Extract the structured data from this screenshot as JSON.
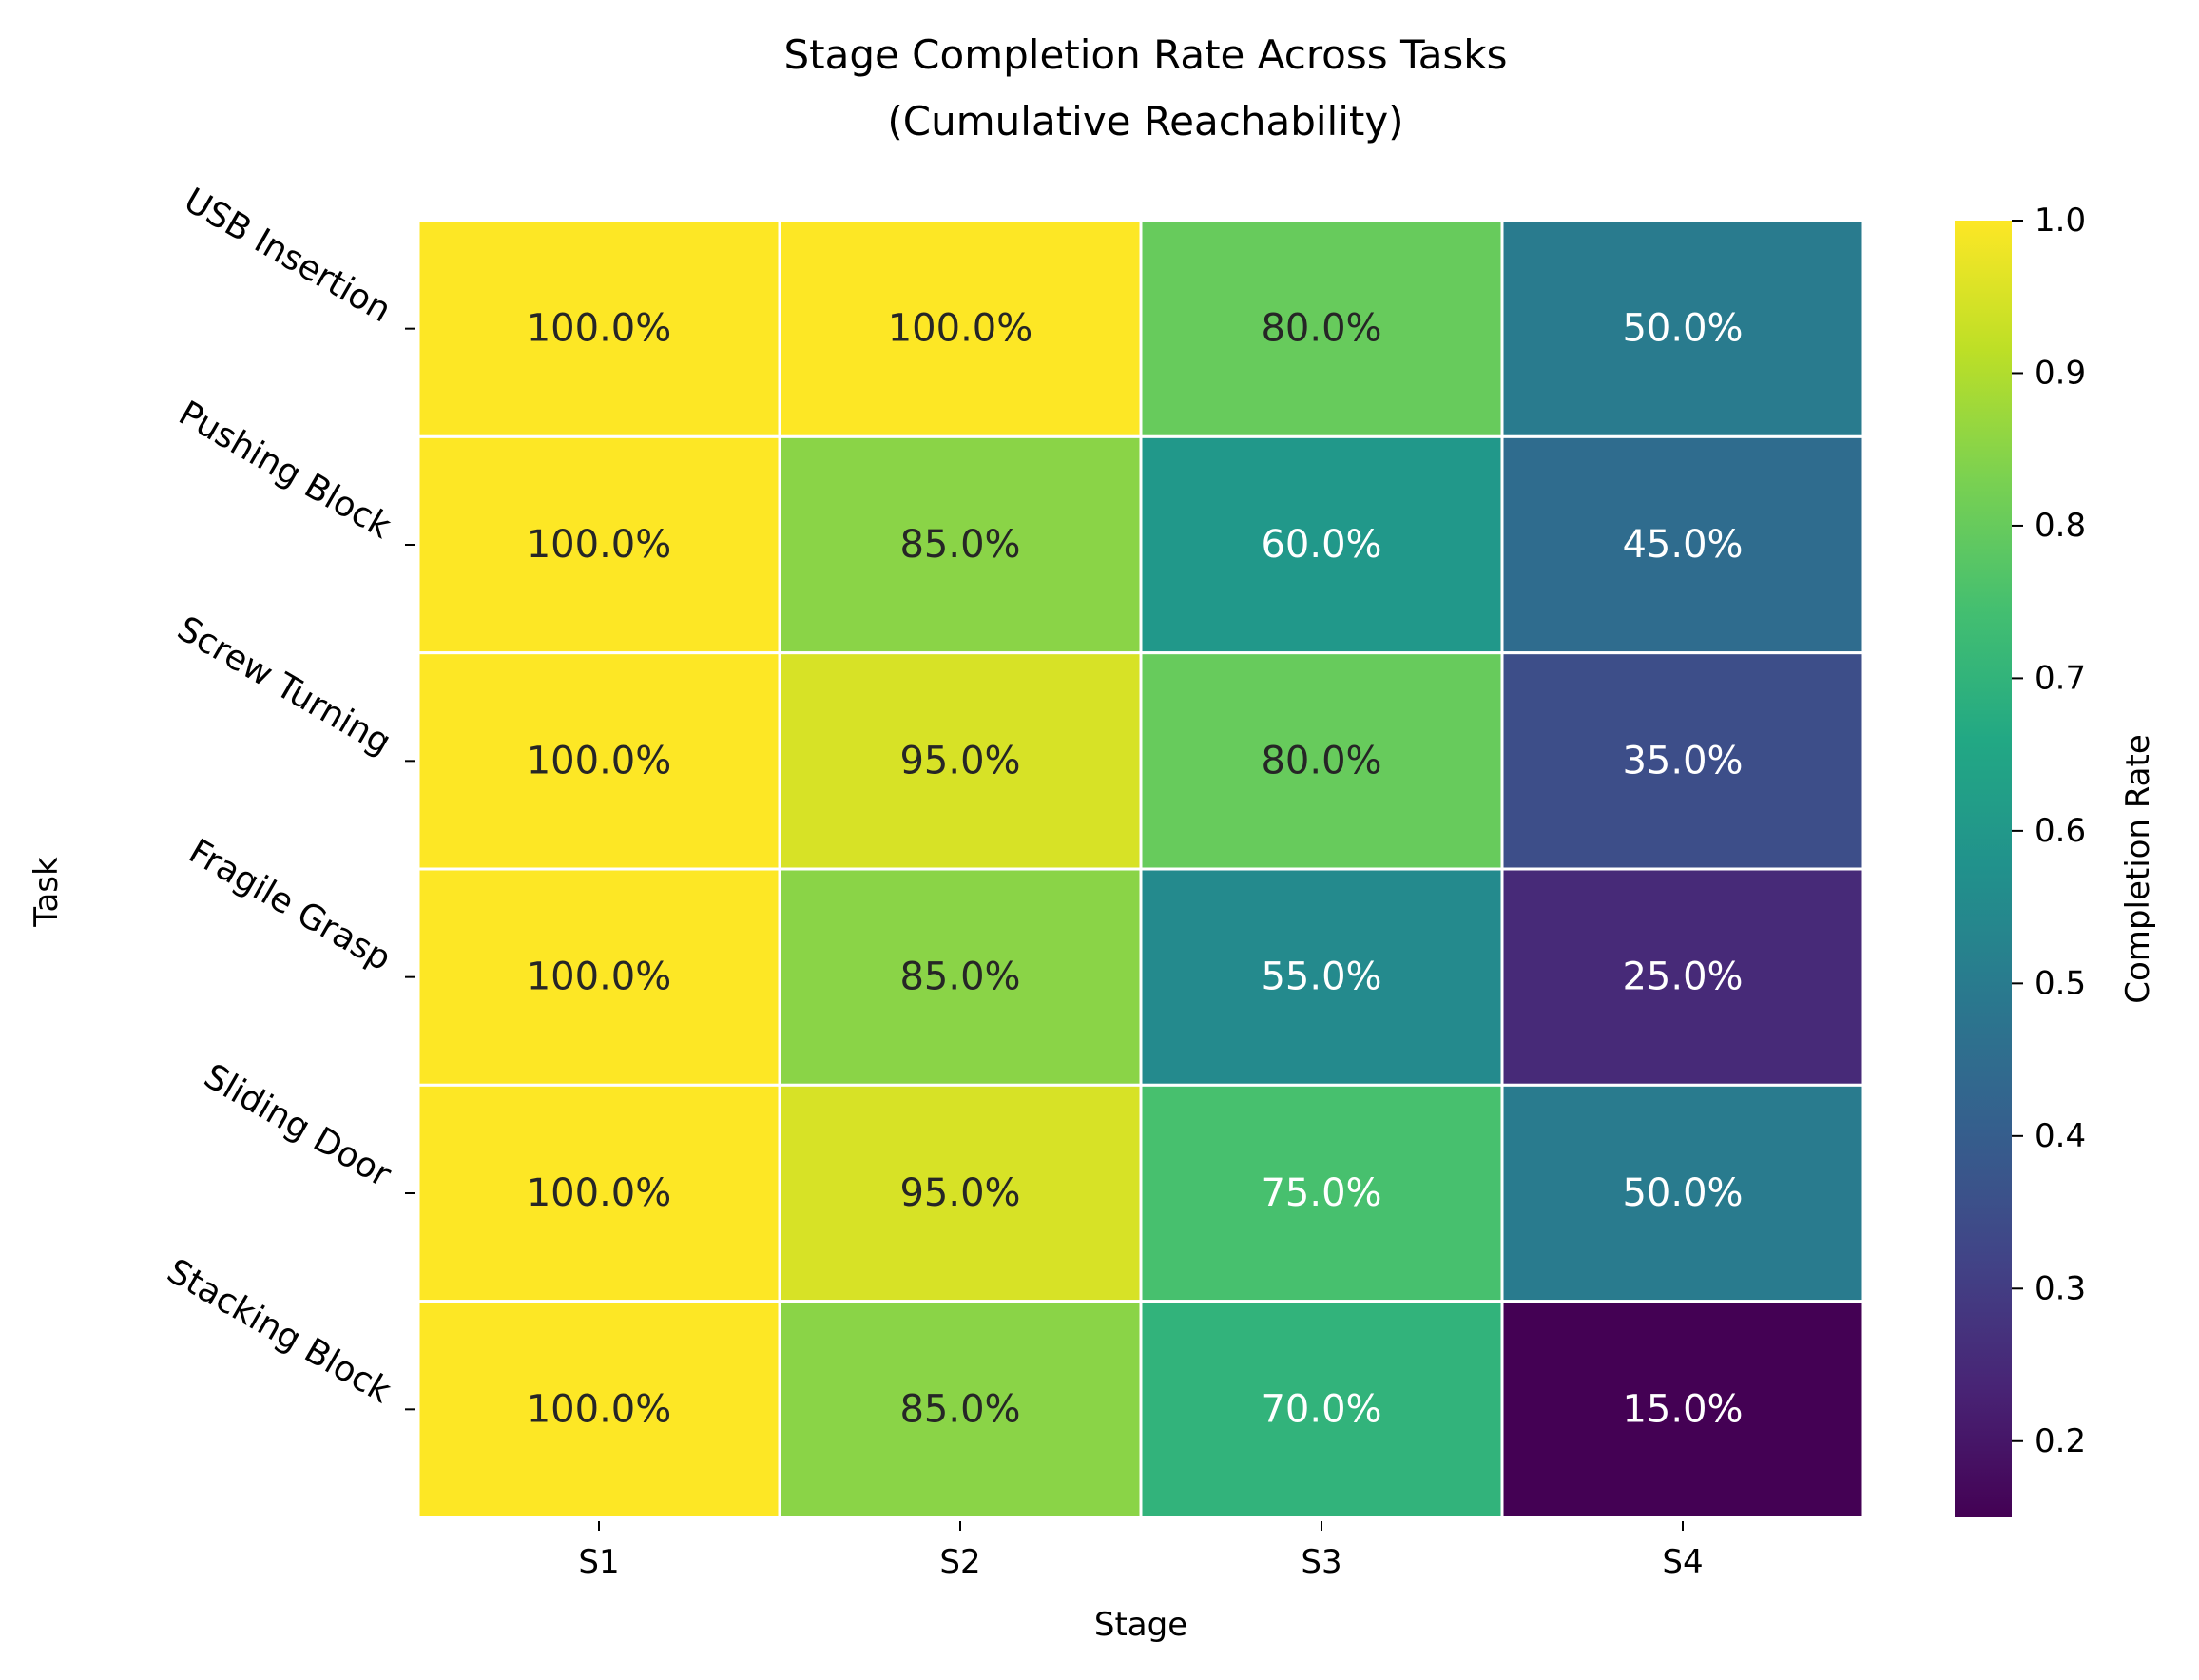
{
  "chart_data": {
    "type": "heatmap",
    "title": "Stage Completion Rate Across Tasks",
    "subtitle": "(Cumulative Reachability)",
    "xlabel": "Stage",
    "ylabel": "Task",
    "x_categories": [
      "S1",
      "S2",
      "S3",
      "S4"
    ],
    "y_categories": [
      "USB Insertion",
      "Pushing Block",
      "Screw Turning",
      "Fragile Grasp",
      "Sliding Door",
      "Stacking Block"
    ],
    "values": [
      [
        1.0,
        1.0,
        0.8,
        0.5
      ],
      [
        1.0,
        0.85,
        0.6,
        0.45
      ],
      [
        1.0,
        0.95,
        0.8,
        0.35
      ],
      [
        1.0,
        0.85,
        0.55,
        0.25
      ],
      [
        1.0,
        0.95,
        0.75,
        0.5
      ],
      [
        1.0,
        0.85,
        0.7,
        0.15
      ]
    ],
    "cell_labels": [
      [
        "100.0%",
        "100.0%",
        "80.0%",
        "50.0%"
      ],
      [
        "100.0%",
        "85.0%",
        "60.0%",
        "45.0%"
      ],
      [
        "100.0%",
        "95.0%",
        "80.0%",
        "35.0%"
      ],
      [
        "100.0%",
        "85.0%",
        "55.0%",
        "25.0%"
      ],
      [
        "100.0%",
        "95.0%",
        "75.0%",
        "50.0%"
      ],
      [
        "100.0%",
        "85.0%",
        "70.0%",
        "15.0%"
      ]
    ],
    "colormap": "viridis",
    "colorbar": {
      "label": "Completion Rate",
      "vmin": 0.15,
      "vmax": 1.0,
      "ticks": [
        1.0,
        0.9,
        0.8,
        0.7,
        0.6,
        0.5,
        0.4,
        0.3,
        0.2
      ],
      "tick_labels": [
        "1.0",
        "0.9",
        "0.8",
        "0.7",
        "0.6",
        "0.5",
        "0.4",
        "0.3",
        "0.2"
      ]
    },
    "grid": false,
    "cell_border_color": "#ffffff",
    "text_colors": {
      "light_cell": "#262626",
      "dark_cell": "#ffffff"
    }
  }
}
